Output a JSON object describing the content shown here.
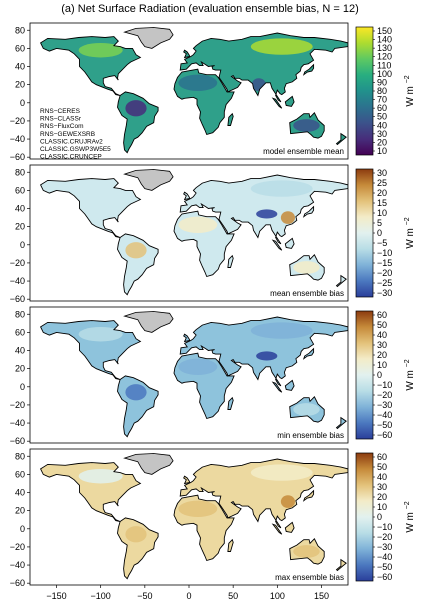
{
  "figure": {
    "title": "(a) Net Surface Radiation (evaluation ensemble bias, N = 12)",
    "units": "W m",
    "units_sup": "−2",
    "legend_lines": [
      "RNS−CERES",
      "RNS−CLASSr",
      "RNS−FluxCom",
      "RNS−GEWEXSRB",
      "CLASSIC.CRUJRAv2",
      "CLASSIC.GSWP3W5E5",
      "CLASSIC.CRUNCEP"
    ],
    "lat_ticks": [
      "80",
      "60",
      "40",
      "20",
      "0",
      "−20",
      "−40",
      "−60"
    ],
    "lon_ticks": [
      "−150",
      "−100",
      "−50",
      "0",
      "50",
      "100",
      "150"
    ],
    "colors": {
      "ocean": "#ffffff",
      "greenland": "#c4c4c4",
      "coast": "#000000"
    }
  },
  "panels": [
    {
      "label": "model ensemble mean",
      "scale": [
        "150",
        "140",
        "130",
        "120",
        "110",
        "100",
        "90",
        "80",
        "70",
        "60",
        "50",
        "40",
        "30",
        "20",
        "10"
      ],
      "palette": [
        "#440154",
        "#472d7b",
        "#3b528b",
        "#2c728e",
        "#21918c",
        "#28ae80",
        "#5ec962",
        "#addc30",
        "#fde725"
      ],
      "land_base": "#2fa08a",
      "regions": [
        {
          "name": "sahara",
          "color": "#2c728e"
        },
        {
          "name": "amazon",
          "color": "#472d7b"
        },
        {
          "name": "siberia",
          "color": "#addc30"
        },
        {
          "name": "canada",
          "color": "#7ad151"
        },
        {
          "name": "australia",
          "color": "#3b528b"
        },
        {
          "name": "india",
          "color": "#3b528b"
        }
      ]
    },
    {
      "label": "mean ensemble bias",
      "scale": [
        "30",
        "25",
        "20",
        "15",
        "10",
        "5",
        "0",
        "−5",
        "−10",
        "−15",
        "−20",
        "−25",
        "−30"
      ],
      "palette": [
        "#2a3e9a",
        "#4b78bf",
        "#7fb2d8",
        "#b8dde6",
        "#e2f1ef",
        "#f3ecc8",
        "#e3c27a",
        "#c68a3a",
        "#8c3b0f"
      ],
      "land_base": "#cfe9ee",
      "regions": [
        {
          "name": "tibet",
          "color": "#2a3e9a"
        },
        {
          "name": "china",
          "color": "#c68a3a"
        },
        {
          "name": "sahara",
          "color": "#f3ecc8"
        },
        {
          "name": "amazon",
          "color": "#e3c27a"
        },
        {
          "name": "siberia",
          "color": "#b8dde6"
        },
        {
          "name": "australia",
          "color": "#f3ecc8"
        }
      ]
    },
    {
      "label": "min ensemble bias",
      "scale": [
        "60",
        "50",
        "40",
        "30",
        "20",
        "10",
        "0",
        "−10",
        "−20",
        "−30",
        "−40",
        "−50",
        "−60"
      ],
      "palette": [
        "#2a3e9a",
        "#4b78bf",
        "#7fb2d8",
        "#b8dde6",
        "#e2f1ef",
        "#f3ecc8",
        "#e3c27a",
        "#c68a3a",
        "#8c3b0f"
      ],
      "land_base": "#8ec3dc",
      "regions": [
        {
          "name": "tibet",
          "color": "#2a3e9a"
        },
        {
          "name": "sahara",
          "color": "#7fb2d8"
        },
        {
          "name": "amazon",
          "color": "#4b78bf"
        },
        {
          "name": "siberia",
          "color": "#7fb2d8"
        },
        {
          "name": "australia",
          "color": "#b8dde6"
        },
        {
          "name": "canada",
          "color": "#b8dde6"
        }
      ]
    },
    {
      "label": "max ensemble bias",
      "scale": [
        "60",
        "50",
        "40",
        "30",
        "20",
        "10",
        "0",
        "−10",
        "−20",
        "−30",
        "−40",
        "−50",
        "−60"
      ],
      "palette": [
        "#2a3e9a",
        "#4b78bf",
        "#7fb2d8",
        "#b8dde6",
        "#e2f1ef",
        "#f3ecc8",
        "#e3c27a",
        "#c68a3a",
        "#8c3b0f"
      ],
      "land_base": "#ecd9a0",
      "regions": [
        {
          "name": "sahara",
          "color": "#e3c27a"
        },
        {
          "name": "china",
          "color": "#c68a3a"
        },
        {
          "name": "amazon",
          "color": "#e3c27a"
        },
        {
          "name": "siberia",
          "color": "#f3ecc8"
        },
        {
          "name": "australia",
          "color": "#e3c27a"
        },
        {
          "name": "canada",
          "color": "#e2f1ef"
        }
      ]
    }
  ]
}
